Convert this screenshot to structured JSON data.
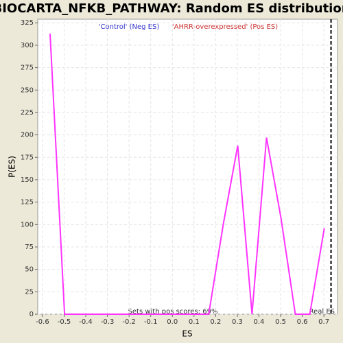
{
  "chart_data": {
    "type": "line",
    "title": "BIOCARTA_NFKB_PATHWAY: Random ES distribution",
    "x_label": "ES",
    "y_label": "P(ES)",
    "annotations": {
      "neg": "'Control' (Neg ES)",
      "pos": "'AHRR-overexpressed' (Pos ES)",
      "pos_scores": "Sets with pos scores: 69%",
      "real_es_label": "Real ES"
    },
    "real_es": 0.733,
    "x": [
      -0.565,
      -0.498,
      0.168,
      0.235,
      0.302,
      0.368,
      0.435,
      0.502,
      0.568,
      0.635,
      0.702
    ],
    "series": [
      {
        "color": "#ff33ff",
        "values": [
          313,
          0,
          0,
          100,
          188,
          0,
          197,
          107,
          0,
          0,
          96
        ]
      }
    ],
    "xlim": [
      -0.622,
      0.763
    ],
    "xticks": [
      -0.6,
      -0.5,
      -0.4,
      -0.3,
      -0.2,
      -0.1,
      {
        "value": 0,
        "label": "0.0"
      },
      0.1,
      0.2,
      0.3,
      0.4,
      0.5,
      0.6,
      0.7
    ],
    "ylim": [
      0,
      329
    ],
    "yticks": [
      0,
      25,
      50,
      75,
      100,
      125,
      150,
      175,
      200,
      225,
      250,
      275,
      300,
      325
    ],
    "grid": true
  }
}
